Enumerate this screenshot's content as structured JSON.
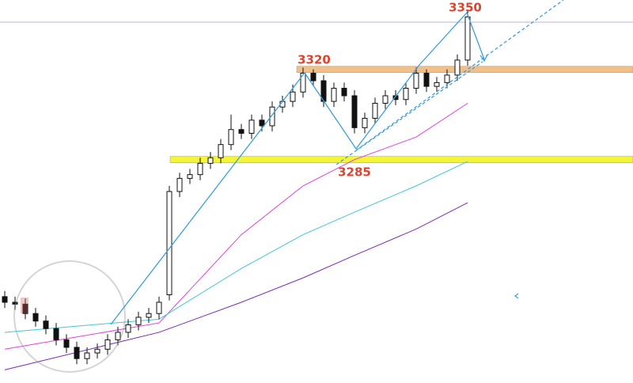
{
  "chart_data": {
    "type": "candlestick",
    "ylim": [
      3153,
      3357
    ],
    "open": [
      3199,
      3196,
      3195,
      3190,
      3186,
      3182,
      3176,
      3172,
      3166,
      3169,
      3171,
      3176,
      3180,
      3184,
      3188,
      3190,
      3200,
      3255,
      3262,
      3264,
      3270,
      3273,
      3280,
      3288,
      3286,
      3293,
      3290,
      3300,
      3303,
      3308,
      3318,
      3314,
      3303,
      3310,
      3306,
      3289,
      3294,
      3302,
      3306,
      3304,
      3310,
      3318,
      3311,
      3313,
      3317,
      3325
    ],
    "high": [
      3202,
      3199,
      3198,
      3193,
      3189,
      3185,
      3179,
      3175,
      3172,
      3174,
      3179,
      3183,
      3187,
      3191,
      3193,
      3199,
      3258,
      3265,
      3267,
      3273,
      3276,
      3283,
      3296,
      3291,
      3296,
      3296,
      3303,
      3306,
      3312,
      3321,
      3320,
      3317,
      3313,
      3313,
      3309,
      3297,
      3305,
      3309,
      3309,
      3313,
      3321,
      3320,
      3316,
      3320,
      3328,
      3352
    ],
    "low": [
      3193,
      3192,
      3187,
      3183,
      3179,
      3173,
      3169,
      3163,
      3163,
      3166,
      3168,
      3173,
      3177,
      3181,
      3185,
      3187,
      3197,
      3252,
      3259,
      3261,
      3267,
      3270,
      3277,
      3283,
      3283,
      3287,
      3287,
      3297,
      3300,
      3305,
      3311,
      3300,
      3300,
      3303,
      3286,
      3286,
      3291,
      3299,
      3301,
      3301,
      3307,
      3308,
      3308,
      3310,
      3314,
      3322
    ],
    "close": [
      3196,
      3195,
      3190,
      3186,
      3182,
      3176,
      3172,
      3166,
      3169,
      3171,
      3176,
      3180,
      3184,
      3188,
      3190,
      3196,
      3255,
      3262,
      3264,
      3270,
      3273,
      3280,
      3288,
      3286,
      3293,
      3290,
      3300,
      3303,
      3308,
      3318,
      3314,
      3303,
      3310,
      3306,
      3289,
      3294,
      3302,
      3306,
      3304,
      3310,
      3318,
      3311,
      3313,
      3317,
      3325,
      3348
    ],
    "series": [
      {
        "color": "#e040e0",
        "x": [
          0,
          15,
          23,
          29,
          34,
          40,
          45
        ],
        "values": [
          3171,
          3185,
          3232,
          3258,
          3272,
          3284,
          3302
        ]
      },
      {
        "color": "#40c8d8",
        "x": [
          0,
          15,
          23,
          29,
          34,
          40,
          45
        ],
        "values": [
          3180,
          3187,
          3214,
          3232,
          3244,
          3258,
          3271
        ]
      },
      {
        "color": "#7a2ab8",
        "x": [
          0,
          15,
          23,
          29,
          34,
          40,
          45
        ],
        "values": [
          3160,
          3180,
          3196,
          3209,
          3221,
          3235,
          3249
        ]
      }
    ],
    "bands": [
      {
        "value": 3320,
        "color": "#f0c08a"
      },
      {
        "value": 3272,
        "color": "#f2f53a"
      }
    ],
    "level_labels": [
      3350,
      3320,
      3285
    ]
  }
}
